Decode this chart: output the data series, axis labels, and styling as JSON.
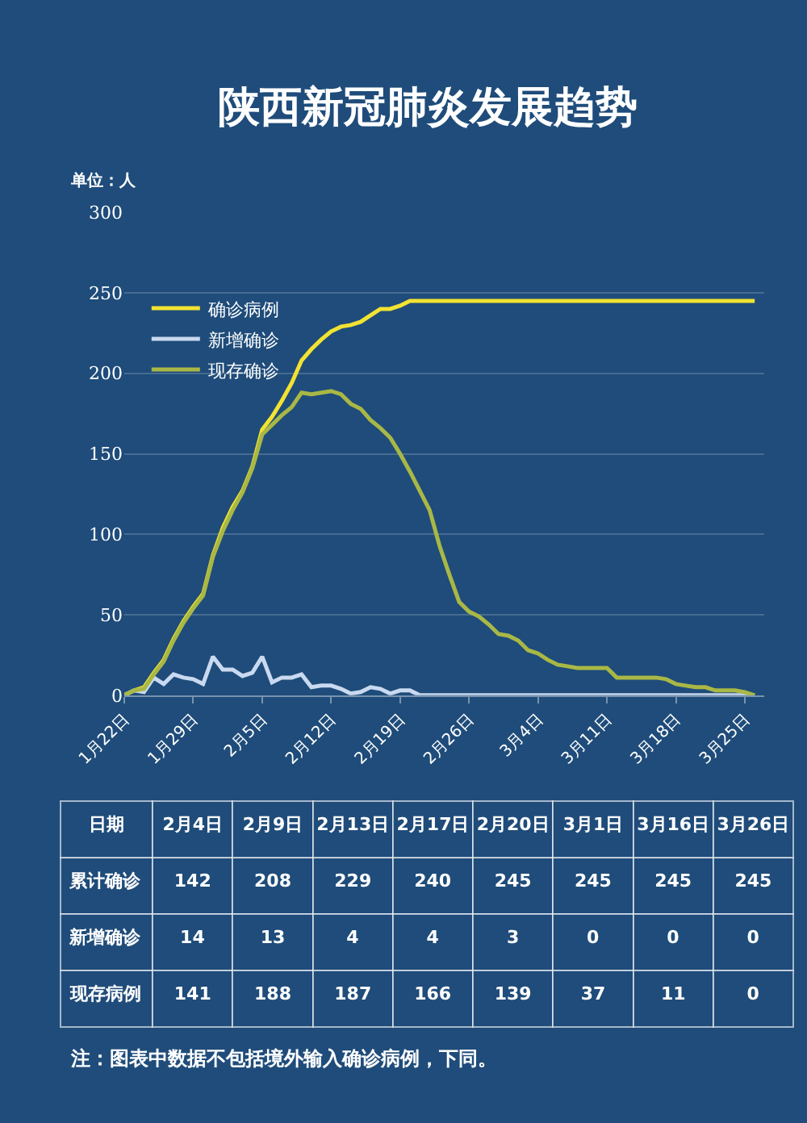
{
  "chart_data": [
    {
      "type": "line",
      "title": "陕西新冠肺炎发展趋势",
      "ylabel": "单位：人",
      "x": [
        "--01-22",
        "--01-23",
        "--01-24",
        "--01-25",
        "--01-26",
        "--01-27",
        "--01-28",
        "--01-29",
        "--01-30",
        "--01-31",
        "--02-01",
        "--02-02",
        "--02-03",
        "--02-04",
        "--02-05",
        "--02-06",
        "--02-07",
        "--02-08",
        "--02-09",
        "--02-10",
        "--02-11",
        "--02-12",
        "--02-13",
        "--02-14",
        "--02-15",
        "--02-16",
        "--02-17",
        "--02-18",
        "--02-19",
        "--02-20",
        "--02-21",
        "--02-22",
        "--02-23",
        "--02-24",
        "--02-25",
        "--02-26",
        "--02-27",
        "--02-28",
        "--02-29",
        "--03-01",
        "--03-02",
        "--03-03",
        "--03-04",
        "--03-05",
        "--03-06",
        "--03-07",
        "--03-08",
        "--03-09",
        "--03-10",
        "--03-11",
        "--03-12",
        "--03-13",
        "--03-14",
        "--03-15",
        "--03-16",
        "--03-17",
        "--03-18",
        "--03-19",
        "--03-20",
        "--03-21",
        "--03-22",
        "--03-23",
        "--03-24",
        "--03-25",
        "--03-26"
      ],
      "series": [
        {
          "name": "确诊病例",
          "color": "#f2e232",
          "values": [
            0,
            3,
            5,
            14,
            22,
            35,
            46,
            55,
            63,
            87,
            104,
            117,
            127,
            142,
            165,
            173,
            183,
            194,
            208,
            215,
            221,
            226,
            229,
            230,
            232,
            236,
            240,
            240,
            242,
            245,
            245,
            245,
            245,
            245,
            245,
            245,
            245,
            245,
            245,
            245,
            245,
            245,
            245,
            245,
            245,
            245,
            245,
            245,
            245,
            245,
            245,
            245,
            245,
            245,
            245,
            245,
            245,
            245,
            245,
            245,
            245,
            245,
            245,
            245,
            245
          ]
        },
        {
          "name": "新增确诊",
          "color": "#c9d9f0",
          "values": [
            0,
            3,
            2,
            11,
            7,
            13,
            11,
            10,
            7,
            24,
            16,
            16,
            12,
            14,
            24,
            8,
            11,
            11,
            13,
            5,
            6,
            6,
            4,
            1,
            2,
            5,
            4,
            1,
            3,
            3,
            0,
            0,
            0,
            0,
            0,
            0,
            0,
            0,
            0,
            0,
            0,
            0,
            0,
            0,
            0,
            0,
            0,
            0,
            0,
            0,
            0,
            0,
            0,
            0,
            0,
            0,
            0,
            0,
            0,
            0,
            0,
            0,
            0,
            0,
            0
          ]
        },
        {
          "name": "现存确诊",
          "color": "#a9b845",
          "values": [
            0,
            3,
            4,
            13,
            21,
            34,
            45,
            54,
            62,
            86,
            102,
            115,
            126,
            141,
            162,
            168,
            174,
            179,
            188,
            187,
            188,
            189,
            187,
            181,
            178,
            171,
            166,
            160,
            150,
            139,
            127,
            115,
            93,
            75,
            58,
            52,
            49,
            44,
            38,
            37,
            34,
            28,
            26,
            22,
            19,
            18,
            17,
            17,
            17,
            17,
            11,
            11,
            11,
            11,
            11,
            10,
            7,
            6,
            5,
            5,
            3,
            3,
            3,
            2,
            0
          ]
        }
      ],
      "xlim": [
        "--01-22",
        "--03-27"
      ],
      "xticks": [
        {
          "value": "--01-22",
          "label": "1月22日"
        },
        {
          "value": "--01-29",
          "label": "1月29日"
        },
        {
          "value": "--02-05",
          "label": "2月5日"
        },
        {
          "value": "--02-12",
          "label": "2月12日"
        },
        {
          "value": "--02-19",
          "label": "2月19日"
        },
        {
          "value": "--02-26",
          "label": "2月26日"
        },
        {
          "value": "--03-04",
          "label": "3月4日"
        },
        {
          "value": "--03-11",
          "label": "3月11日"
        },
        {
          "value": "--03-18",
          "label": "3月18日"
        },
        {
          "value": "--03-25",
          "label": "3月25日"
        }
      ],
      "ylim": [
        0,
        300
      ],
      "yticks": [
        0,
        50,
        100,
        150,
        200,
        250,
        300
      ],
      "grid": "y",
      "legend": "top left",
      "marker": "none",
      "line_style": "solid"
    },
    {
      "type": "other",
      "xlabel": "日期",
      "categories": [
        "2月4日",
        "2月9日",
        "2月13日",
        "2月17日",
        "2月20日",
        "3月1日",
        "3月16日",
        "3月26日"
      ],
      "series": [
        {
          "name": "累计确诊",
          "values": [
            142,
            208,
            229,
            240,
            245,
            245,
            245,
            245
          ]
        },
        {
          "name": "新增确诊",
          "values": [
            14,
            13,
            4,
            4,
            3,
            0,
            0,
            0
          ]
        },
        {
          "name": "现存病例",
          "values": [
            141,
            188,
            187,
            166,
            139,
            37,
            11,
            0
          ]
        }
      ],
      "data_labels": true,
      "annotations": [
        "注：图表中数据不包括境外输入确诊病例，下同。"
      ]
    }
  ]
}
